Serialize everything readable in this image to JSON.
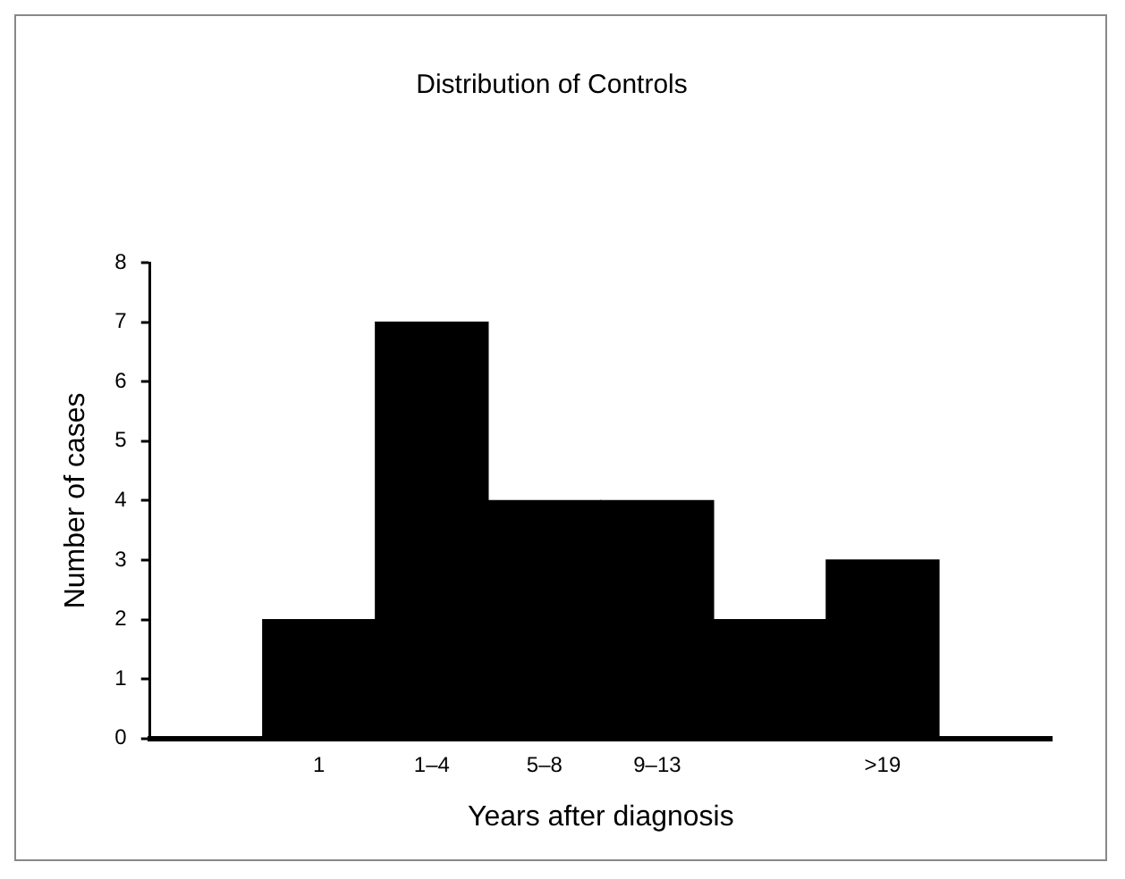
{
  "chart_data": {
    "type": "bar",
    "title": "Distribution of Controls",
    "xlabel": "Years after diagnosis",
    "ylabel": "Number of cases",
    "categories": [
      null,
      "1",
      "1–4",
      "5–8",
      "9–13",
      null,
      ">19",
      null
    ],
    "values": [
      0,
      2,
      7,
      4,
      4,
      2,
      3,
      0
    ],
    "color": "#000000",
    "ylim": [
      0,
      8
    ],
    "yticks": [
      0,
      1,
      2,
      3,
      4,
      5,
      6,
      7,
      8
    ],
    "grid": false,
    "legend": false
  }
}
